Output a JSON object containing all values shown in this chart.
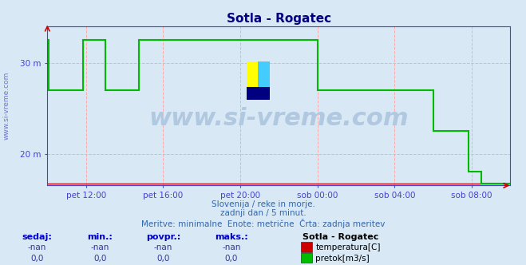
{
  "title": "Sotla - Rogatec",
  "title_color": "#000080",
  "bg_color": "#d8e8f4",
  "plot_bg_color": "#d8e8f4",
  "axis_color": "#4444cc",
  "grid_color": "#ffaaaa",
  "ylabel_color": "#4444aa",
  "watermark": "www.si-vreme.com",
  "watermark_color": "#b0c8e0",
  "subtitle1": "Slovenija / reke in morje.",
  "subtitle2": "zadnji dan / 5 minut.",
  "subtitle3": "Meritve: minimalne  Enote: metrične  Črta: zadnja meritev",
  "text_color": "#3366aa",
  "xlabel_color": "#4444cc",
  "yticks": [
    20,
    30
  ],
  "ytick_labels": [
    "20 m",
    "30 m"
  ],
  "ylim": [
    16.5,
    34.0
  ],
  "xlim": [
    0,
    288
  ],
  "xtick_positions": [
    24,
    72,
    120,
    168,
    216,
    264
  ],
  "xtick_labels": [
    "pet 12:00",
    "pet 16:00",
    "pet 20:00",
    "sob 00:00",
    "sob 04:00",
    "sob 08:00"
  ],
  "legend_title": "Sotla - Rogatec",
  "legend_entries": [
    "temperatura[C]",
    "pretok[m3/s]"
  ],
  "legend_colors": [
    "#cc0000",
    "#00bb00"
  ],
  "table_headers": [
    "sedaj:",
    "min.:",
    "povpr.:",
    "maks.:"
  ],
  "table_values_temp": [
    "-nan",
    "-nan",
    "-nan",
    "-nan"
  ],
  "table_values_flow": [
    "0,0",
    "0,0",
    "0,0",
    "0,0"
  ],
  "green_line_color": "#00bb00",
  "red_line_color": "#cc0000",
  "green_x": [
    0,
    1,
    1,
    22,
    22,
    36,
    36,
    57,
    57,
    96,
    96,
    168,
    168,
    192,
    192,
    216,
    216,
    240,
    240,
    252,
    252,
    262,
    262,
    270,
    270,
    288
  ],
  "green_y": [
    32.5,
    32.5,
    27.0,
    27.0,
    32.5,
    32.5,
    27.0,
    27.0,
    32.5,
    32.5,
    32.5,
    32.5,
    27.0,
    27.0,
    27.0,
    27.0,
    27.0,
    27.0,
    22.5,
    22.5,
    22.5,
    22.5,
    18.0,
    18.0,
    16.7,
    16.7
  ],
  "red_x": [
    0,
    288
  ],
  "red_y": [
    16.7,
    16.7
  ],
  "figsize": [
    6.59,
    3.32
  ],
  "dpi": 100
}
